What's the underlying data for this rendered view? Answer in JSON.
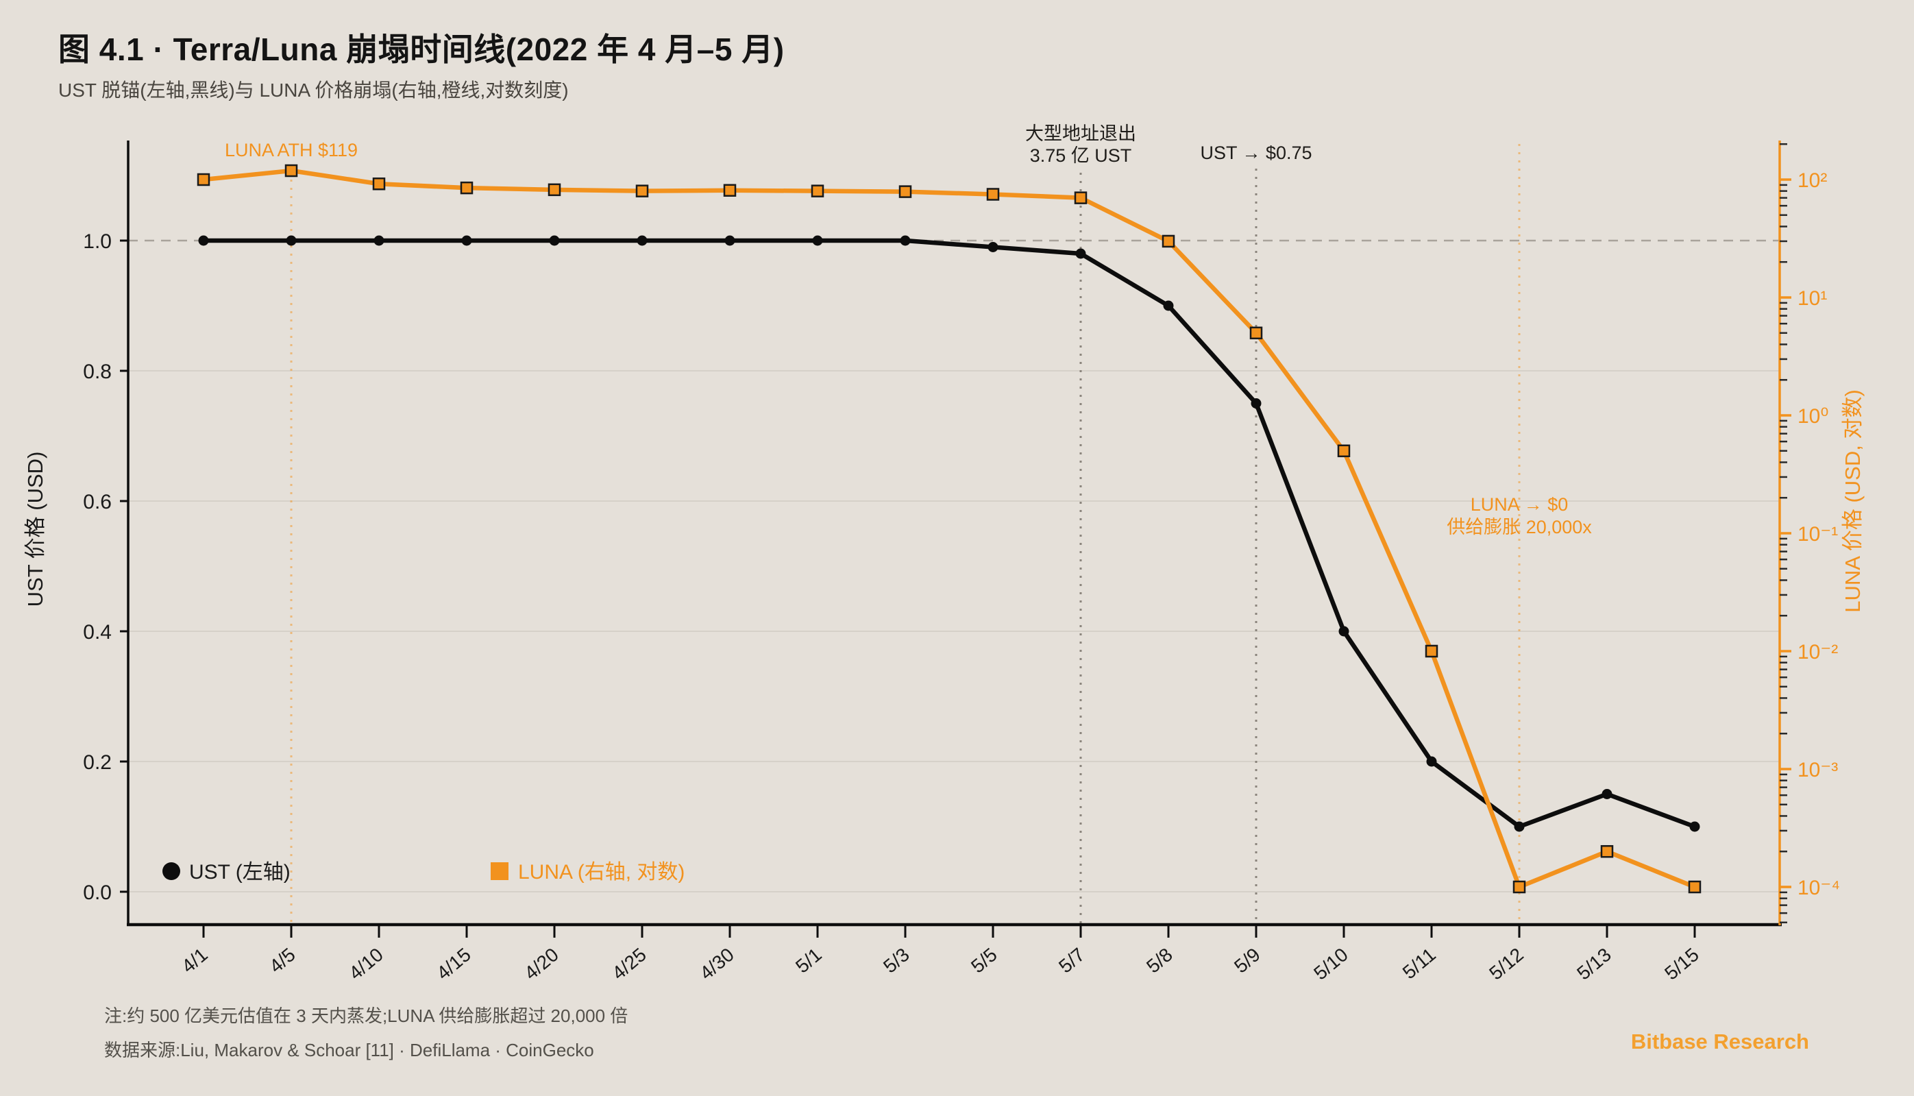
{
  "header": {
    "title": "图 4.1 · Terra/Luna 崩塌时间线(2022 年 4 月–5 月)",
    "subtitle": "UST 脱锚(左轴,黑线)与 LUNA 价格崩塌(右轴,橙线,对数刻度)"
  },
  "colors": {
    "background": "#E5E0D9",
    "ust_black": "#0d0d0d",
    "luna_orange": "#F2921E",
    "orange_dotted": "rgba(242,146,30,0.5)",
    "gray_dotted": "#8a847c",
    "gridline": "#d2ccc4",
    "peg_dashed": "#a9a39b",
    "brand_orange": "#F3A02F"
  },
  "chart_data": {
    "type": "line",
    "title": "图 4.1 · Terra/Luna 崩塌时间线(2022 年 4 月–5 月)",
    "subtitle": "UST 脱锚(左轴,黑线)与 LUNA 价格崩塌(右轴,橙线,对数刻度)",
    "categories": [
      "4/1",
      "4/5",
      "4/10",
      "4/15",
      "4/20",
      "4/25",
      "4/30",
      "5/1",
      "5/3",
      "5/5",
      "5/7",
      "5/8",
      "5/9",
      "5/10",
      "5/11",
      "5/12",
      "5/13",
      "5/15"
    ],
    "series": [
      {
        "name": "UST (左轴)",
        "axis": "left",
        "color": "#0d0d0d",
        "marker": "circle",
        "values": [
          1.0,
          1.0,
          1.0,
          1.0,
          1.0,
          1.0,
          1.0,
          1.0,
          1.0,
          0.99,
          0.98,
          0.9,
          0.75,
          0.4,
          0.2,
          0.1,
          0.15,
          0.1
        ]
      },
      {
        "name": "LUNA (右轴, 对数)",
        "axis": "right",
        "color": "#F2921E",
        "marker": "square",
        "values": [
          100,
          119,
          92,
          85,
          82,
          80,
          81,
          80,
          79,
          75,
          70,
          30,
          5,
          0.5,
          0.01,
          0.0001,
          0.0002,
          0.0001
        ]
      }
    ],
    "left_axis": {
      "label": "UST 价格 (USD)",
      "scale": "linear",
      "tick_values": [
        0.0,
        0.2,
        0.4,
        0.6,
        0.8,
        1.0
      ],
      "tick_labels": [
        "0.0",
        "0.2",
        "0.4",
        "0.6",
        "0.8",
        "1.0"
      ],
      "range": [
        0,
        1.15
      ],
      "peg_reference": 1.0
    },
    "right_axis": {
      "label": "LUNA 价格 (USD, 对数)",
      "scale": "log",
      "tick_values": [
        100,
        10,
        1,
        0.1,
        0.01,
        0.001,
        0.0001
      ],
      "tick_labels": [
        "10²",
        "10¹",
        "10⁰",
        "10⁻¹",
        "10⁻²",
        "10⁻³",
        "10⁻⁴"
      ],
      "range": [
        5e-05,
        200
      ]
    },
    "grid": "horizontal-on",
    "legend_position": "bottom-left-inside",
    "annotations": [
      {
        "id": "luna-ath",
        "category": "4/5",
        "lines": [
          "LUNA ATH $119"
        ],
        "color": "orange",
        "line_style": "dotted"
      },
      {
        "id": "whale-exit",
        "category": "5/7",
        "lines": [
          "大型地址退出",
          "3.75 亿 UST"
        ],
        "color": "black",
        "line_style": "dotted"
      },
      {
        "id": "ust-depeg",
        "category": "5/9",
        "lines": [
          "UST → $0.75"
        ],
        "color": "black",
        "line_style": "dotted"
      },
      {
        "id": "luna-zero",
        "category": "5/12",
        "lines": [
          "LUNA → $0",
          "供给膨胀 20,000x"
        ],
        "color": "orange",
        "line_style": "dotted"
      }
    ],
    "legend": [
      {
        "label": "UST (左轴)",
        "marker": "circle",
        "color": "#0d0d0d"
      },
      {
        "label": "LUNA (右轴, 对数)",
        "marker": "square",
        "color": "#F2921E"
      }
    ]
  },
  "footer": {
    "note": "注:约 500 亿美元估值在 3 天内蒸发;LUNA 供给膨胀超过 20,000 倍",
    "source": "数据来源:Liu, Makarov & Schoar [11] · DefiLlama · CoinGecko",
    "brand": "Bitbase Research"
  }
}
